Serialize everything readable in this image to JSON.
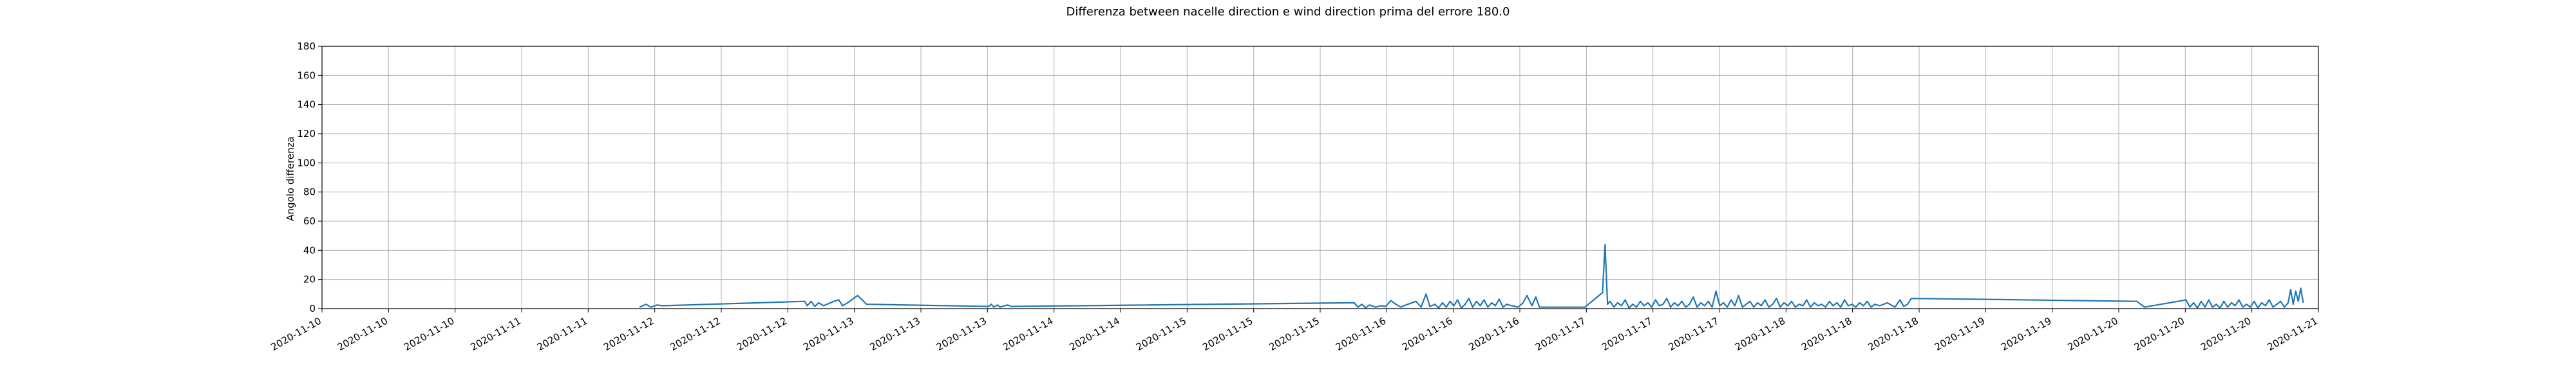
{
  "chart_data": {
    "type": "line",
    "title": "Differenza between nacelle direction e wind direction prima del errore 180.0",
    "xlabel": "",
    "ylabel": "Angolo differenza",
    "ylim": [
      0,
      180
    ],
    "yticks": [
      0,
      20,
      40,
      60,
      80,
      100,
      120,
      140,
      160,
      180
    ],
    "xlim": [
      "2020-11-10 00:00",
      "2020-11-21 00:00"
    ],
    "xtick_labels": [
      "2020-11-10",
      "2020-11-10",
      "2020-11-10",
      "2020-11-11",
      "2020-11-11",
      "2020-11-12",
      "2020-11-12",
      "2020-11-12",
      "2020-11-13",
      "2020-11-13",
      "2020-11-13",
      "2020-11-14",
      "2020-11-14",
      "2020-11-15",
      "2020-11-15",
      "2020-11-15",
      "2020-11-16",
      "2020-11-16",
      "2020-11-16",
      "2020-11-17",
      "2020-11-17",
      "2020-11-17",
      "2020-11-18",
      "2020-11-18",
      "2020-11-18",
      "2020-11-19",
      "2020-11-19",
      "2020-11-20",
      "2020-11-20",
      "2020-11-20",
      "2020-11-21"
    ],
    "grid": true,
    "line_color": "#1f77b4",
    "series": [
      {
        "x": [
          "2020-11-11 18:00",
          "2020-11-11 18:50",
          "2020-11-11 19:30",
          "2020-11-11 20:20",
          "2020-11-11 21:00",
          "2020-11-12 15:50",
          "2020-11-12 16:10",
          "2020-11-12 16:40",
          "2020-11-12 17:10",
          "2020-11-12 17:40",
          "2020-11-12 18:20",
          "2020-11-12 19:40",
          "2020-11-12 20:20",
          "2020-11-12 20:50",
          "2020-11-12 21:30",
          "2020-11-12 22:50",
          "2020-11-13 00:00",
          "2020-11-13 16:10",
          "2020-11-13 16:30",
          "2020-11-13 16:50",
          "2020-11-13 17:20",
          "2020-11-13 17:40",
          "2020-11-13 18:40",
          "2020-11-13 19:10",
          "2020-11-15 16:30",
          "2020-11-15 17:00",
          "2020-11-15 17:30",
          "2020-11-15 18:00",
          "2020-11-15 18:30",
          "2020-11-15 19:20",
          "2020-11-15 20:00",
          "2020-11-15 20:40",
          "2020-11-15 21:20",
          "2020-11-15 22:00",
          "2020-11-15 22:40",
          "2020-11-15 23:20",
          "2020-11-16 00:40",
          "2020-11-16 01:20",
          "2020-11-16 02:00",
          "2020-11-16 02:30",
          "2020-11-16 03:10",
          "2020-11-16 03:40",
          "2020-11-16 04:10",
          "2020-11-16 04:40",
          "2020-11-16 05:10",
          "2020-11-16 05:40",
          "2020-11-16 06:10",
          "2020-11-16 06:40",
          "2020-11-16 07:10",
          "2020-11-16 07:40",
          "2020-11-16 08:10",
          "2020-11-16 08:40",
          "2020-11-16 09:10",
          "2020-11-16 09:40",
          "2020-11-16 10:10",
          "2020-11-16 10:40",
          "2020-11-16 11:10",
          "2020-11-16 11:40",
          "2020-11-16 12:10",
          "2020-11-16 12:40",
          "2020-11-16 13:20",
          "2020-11-16 14:10",
          "2020-11-16 14:50",
          "2020-11-16 15:20",
          "2020-11-16 16:00",
          "2020-11-16 16:30",
          "2020-11-16 17:00",
          "2020-11-16 23:00",
          "2020-11-17 01:20",
          "2020-11-17 01:40",
          "2020-11-17 02:00",
          "2020-11-17 02:20",
          "2020-11-17 02:50",
          "2020-11-17 03:20",
          "2020-11-17 03:50",
          "2020-11-17 04:20",
          "2020-11-17 04:50",
          "2020-11-17 05:20",
          "2020-11-17 05:50",
          "2020-11-17 06:20",
          "2020-11-17 06:50",
          "2020-11-17 07:20",
          "2020-11-17 07:50",
          "2020-11-17 08:20",
          "2020-11-17 08:50",
          "2020-11-17 09:20",
          "2020-11-17 09:50",
          "2020-11-17 10:20",
          "2020-11-17 10:50",
          "2020-11-17 11:20",
          "2020-11-17 11:50",
          "2020-11-17 12:20",
          "2020-11-17 12:50",
          "2020-11-17 13:20",
          "2020-11-17 13:50",
          "2020-11-17 14:20",
          "2020-11-17 14:50",
          "2020-11-17 15:20",
          "2020-11-17 15:50",
          "2020-11-17 16:20",
          "2020-11-17 16:50",
          "2020-11-17 17:20",
          "2020-11-17 17:50",
          "2020-11-17 18:20",
          "2020-11-17 18:50",
          "2020-11-17 19:20",
          "2020-11-17 19:50",
          "2020-11-17 20:20",
          "2020-11-17 20:50",
          "2020-11-17 21:20",
          "2020-11-17 21:50",
          "2020-11-17 22:20",
          "2020-11-17 22:50",
          "2020-11-17 23:20",
          "2020-11-17 23:50",
          "2020-11-18 00:20",
          "2020-11-18 00:50",
          "2020-11-18 01:20",
          "2020-11-18 01:50",
          "2020-11-18 02:20",
          "2020-11-18 02:50",
          "2020-11-18 03:20",
          "2020-11-18 03:50",
          "2020-11-18 04:20",
          "2020-11-18 04:50",
          "2020-11-18 05:20",
          "2020-11-18 05:50",
          "2020-11-18 06:20",
          "2020-11-18 06:50",
          "2020-11-18 07:20",
          "2020-11-18 07:50",
          "2020-11-18 08:20",
          "2020-11-18 08:50",
          "2020-11-18 09:20",
          "2020-11-18 09:50",
          "2020-11-18 10:20",
          "2020-11-18 10:50",
          "2020-11-18 11:20",
          "2020-11-18 11:50",
          "2020-11-18 12:20",
          "2020-11-18 12:50",
          "2020-11-18 13:20",
          "2020-11-18 14:00",
          "2020-11-18 15:00",
          "2020-11-18 16:00",
          "2020-11-18 16:40",
          "2020-11-18 17:10",
          "2020-11-18 17:40",
          "2020-11-18 18:10",
          "2020-11-20 00:00",
          "2020-11-20 01:00",
          "2020-11-20 06:30",
          "2020-11-20 07:00",
          "2020-11-20 07:30",
          "2020-11-20 08:00",
          "2020-11-20 08:30",
          "2020-11-20 09:00",
          "2020-11-20 09:30",
          "2020-11-20 10:00",
          "2020-11-20 10:30",
          "2020-11-20 11:00",
          "2020-11-20 11:30",
          "2020-11-20 12:00",
          "2020-11-20 12:30",
          "2020-11-20 13:00",
          "2020-11-20 13:30",
          "2020-11-20 14:00",
          "2020-11-20 14:30",
          "2020-11-20 15:00",
          "2020-11-20 15:30",
          "2020-11-20 16:00",
          "2020-11-20 16:30",
          "2020-11-20 17:00",
          "2020-11-20 17:30",
          "2020-11-20 18:00",
          "2020-11-20 18:30",
          "2020-11-20 19:00",
          "2020-11-20 19:30",
          "2020-11-20 20:00",
          "2020-11-20 20:20",
          "2020-11-20 20:40",
          "2020-11-20 21:00",
          "2020-11-20 21:20",
          "2020-11-20 21:40",
          "2020-11-20 22:00"
        ],
        "y": [
          1,
          3,
          1,
          2.5,
          2,
          5,
          2,
          5,
          1.5,
          4,
          2,
          5,
          6,
          2,
          4,
          9,
          3,
          1.5,
          3,
          1,
          2.5,
          1,
          2.5,
          1.5,
          4,
          1,
          3,
          0.5,
          2.5,
          1,
          2,
          1.5,
          5.5,
          3,
          1,
          2.5,
          5,
          1,
          10,
          1.5,
          3,
          0.5,
          4,
          1,
          5,
          2,
          6,
          0.5,
          3,
          7,
          1,
          5,
          2,
          6,
          1,
          4,
          2,
          6.5,
          1,
          3,
          2,
          1,
          4,
          9,
          2,
          8,
          1,
          1,
          11,
          44,
          3,
          5,
          1,
          4,
          2,
          6,
          0.5,
          3,
          1,
          5,
          2,
          4,
          1,
          6,
          2,
          3,
          7,
          1,
          4,
          2,
          5,
          1,
          3,
          8,
          1,
          4,
          2,
          5,
          1,
          12,
          2,
          4,
          1,
          6,
          2,
          9,
          1,
          3,
          5,
          1,
          4,
          2,
          6,
          1,
          3,
          7,
          1,
          4,
          2,
          5,
          1,
          3,
          2,
          6,
          1,
          4,
          2,
          3,
          1,
          5,
          2,
          4,
          1,
          6,
          2,
          3,
          1,
          4,
          2,
          5,
          1,
          3,
          2,
          4,
          1,
          6,
          1.5,
          3,
          7,
          5,
          1,
          6,
          1,
          4,
          0.5,
          5,
          1,
          6,
          1,
          3,
          0.5,
          5,
          1,
          4,
          2,
          6,
          1,
          3,
          1,
          5,
          0.5,
          4,
          2,
          6,
          1,
          3,
          5,
          1,
          4,
          13,
          3,
          12,
          5,
          14,
          4
        ]
      }
    ]
  }
}
